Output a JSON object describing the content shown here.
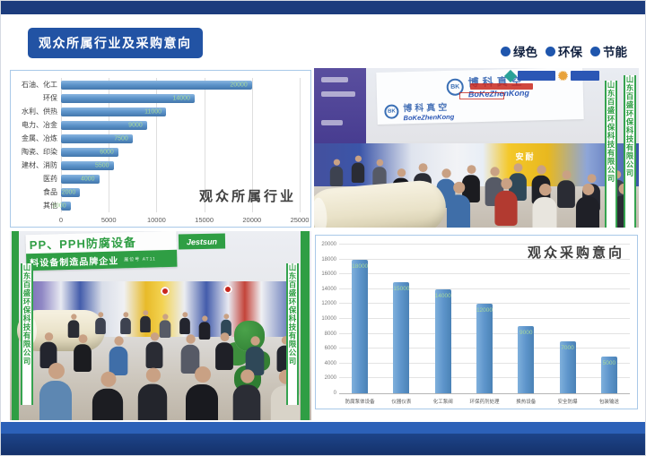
{
  "header": {
    "title": "观众所属行业及采购意向",
    "tagline": {
      "items": [
        {
          "label": "绿色"
        },
        {
          "label": "环保"
        },
        {
          "label": "节能"
        }
      ]
    }
  },
  "chart_data": [
    {
      "type": "bar",
      "orientation": "horizontal",
      "title": "观众所属行业",
      "categories": [
        "石油、化工",
        "环保",
        "水利、供热",
        "电力、冶金",
        "金属、冶炼",
        "陶瓷、印染",
        "建材、消防",
        "医药",
        "食品",
        "其他"
      ],
      "values": [
        20000,
        14000,
        11000,
        9000,
        7500,
        6000,
        5500,
        4000,
        2000,
        1000
      ],
      "xlabel": "",
      "ylabel": "",
      "xlim": [
        0,
        25000
      ],
      "xticks": [
        0,
        5000,
        10000,
        15000,
        20000,
        25000
      ],
      "grid": true,
      "legend": false,
      "bar_color": "#5b93c9",
      "data_label_color": "#a6d89b"
    },
    {
      "type": "bar",
      "orientation": "vertical",
      "title": "观众采购意向",
      "categories": [
        "防腐泵体设备",
        "仪器仪表",
        "化工泵阀",
        "环保药剂处理",
        "换热设备",
        "安全防爆",
        "包装输送"
      ],
      "values": [
        18000,
        15000,
        14000,
        12000,
        9000,
        7000,
        5000
      ],
      "xlabel": "",
      "ylabel": "",
      "ylim": [
        0,
        20000
      ],
      "yticks": [
        0,
        2000,
        4000,
        6000,
        8000,
        10000,
        12000,
        14000,
        16000,
        18000,
        20000
      ],
      "grid": true,
      "legend": false,
      "bar_color": "#5b93c9",
      "data_label_color": "#a6d89b"
    }
  ],
  "photos": {
    "top_right": {
      "banner1_cn": "博科真空",
      "banner1_en": "BoKeZhenKong",
      "banner2_cn": "博科真空",
      "banner2_en": "BoKeZhenKong",
      "pillar_text": "山东百盛环保科技有限公司",
      "booth_text": "安耐"
    },
    "bottom_left": {
      "banner_line1": "PP、PPH防腐设备",
      "banner_line2": "料设备制造品牌企业",
      "banner_tag": "展位号 AT11",
      "brand": "Jestsun",
      "pillar_text": "山东百盛环保科技有限公司"
    }
  },
  "colors": {
    "navy": "#1c3c7d",
    "badge_blue": "#2253a4",
    "footer_light": "#2c61b8",
    "footer_dark": "#17417e",
    "bar_blue": "#5b93c9",
    "data_label_green": "#a6d89b",
    "photo_green": "#2f9e44"
  }
}
